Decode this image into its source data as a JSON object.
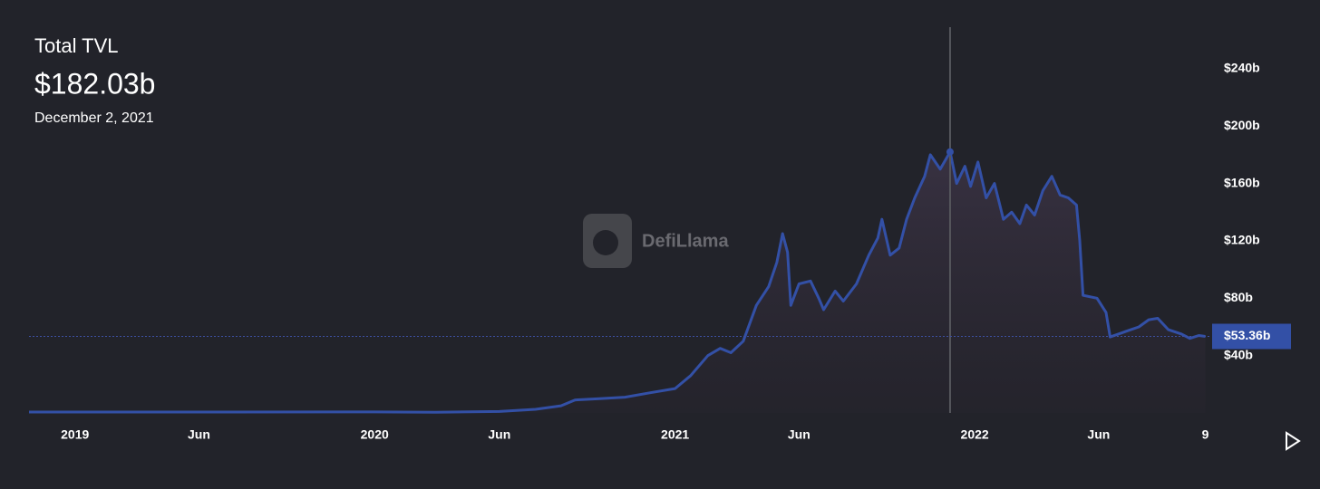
{
  "chart_data": {
    "type": "area",
    "title": "Total TVL",
    "tooltip": {
      "value": {
        "value": 182.03,
        "label": "$182.03b"
      },
      "date": "December 2, 2021",
      "x": "2021-12-02"
    },
    "watermark": "DefiLlama",
    "color": "#3350a6",
    "x": [
      "2018-11-06",
      "2019-06-01",
      "2020-01-01",
      "2020-03-15",
      "2020-06-01",
      "2020-07-15",
      "2020-08-15",
      "2020-09-01",
      "2020-10-01",
      "2020-11-01",
      "2020-12-01",
      "2021-01-01",
      "2021-01-20",
      "2021-02-10",
      "2021-02-25",
      "2021-03-10",
      "2021-03-25",
      "2021-04-10",
      "2021-04-25",
      "2021-05-05",
      "2021-05-12",
      "2021-05-18",
      "2021-05-22",
      "2021-06-01",
      "2021-06-15",
      "2021-06-25",
      "2021-07-01",
      "2021-07-15",
      "2021-07-25",
      "2021-08-10",
      "2021-08-25",
      "2021-09-05",
      "2021-09-10",
      "2021-09-20",
      "2021-10-01",
      "2021-10-10",
      "2021-10-20",
      "2021-11-01",
      "2021-11-08",
      "2021-11-20",
      "2021-12-02",
      "2021-12-10",
      "2021-12-20",
      "2021-12-27",
      "2022-01-05",
      "2022-01-15",
      "2022-01-25",
      "2022-02-05",
      "2022-02-15",
      "2022-02-25",
      "2022-03-05",
      "2022-03-15",
      "2022-03-25",
      "2022-04-05",
      "2022-04-15",
      "2022-04-25",
      "2022-05-05",
      "2022-05-09",
      "2022-05-13",
      "2022-05-30",
      "2022-06-10",
      "2022-06-15",
      "2022-06-25",
      "2022-07-05",
      "2022-07-20",
      "2022-08-01",
      "2022-08-12",
      "2022-08-25",
      "2022-09-10",
      "2022-09-20",
      "2022-10-01",
      "2022-10-09"
    ],
    "values": [
      0.6,
      0.6,
      0.7,
      0.5,
      1.0,
      2.5,
      5,
      9,
      10,
      11,
      14,
      17,
      26,
      40,
      45,
      42,
      50,
      75,
      88,
      105,
      125,
      112,
      75,
      90,
      92,
      80,
      72,
      85,
      78,
      90,
      110,
      122,
      135,
      110,
      115,
      135,
      150,
      165,
      180,
      170,
      182.03,
      160,
      172,
      158,
      175,
      150,
      160,
      135,
      140,
      132,
      145,
      138,
      155,
      165,
      152,
      150,
      145,
      120,
      82,
      80,
      70,
      53,
      55,
      57,
      60,
      65,
      66,
      58,
      55,
      52,
      54,
      53.36
    ],
    "reference_line": {
      "value": 53.36,
      "label": "$53.36b"
    },
    "xlim": [
      "2018-11-06",
      "2022-10-15"
    ],
    "xticks": [
      {
        "value": "2019-01-01",
        "label": "2019"
      },
      {
        "value": "2019-06-01",
        "label": "Jun"
      },
      {
        "value": "2020-01-01",
        "label": "2020"
      },
      {
        "value": "2020-06-01",
        "label": "Jun"
      },
      {
        "value": "2021-01-01",
        "label": "2021"
      },
      {
        "value": "2021-06-01",
        "label": "Jun"
      },
      {
        "value": "2022-01-01",
        "label": "2022"
      },
      {
        "value": "2022-06-01",
        "label": "Jun"
      },
      {
        "value": "2022-10-09",
        "label": "9"
      }
    ],
    "ylim": [
      0,
      269
    ],
    "yticks": [
      {
        "value": 40,
        "label": "$40b"
      },
      {
        "value": 80,
        "label": "$80b"
      },
      {
        "value": 120,
        "label": "$120b"
      },
      {
        "value": 160,
        "label": "$160b"
      },
      {
        "value": 200,
        "label": "$200b"
      },
      {
        "value": 240,
        "label": "$240b"
      }
    ]
  }
}
